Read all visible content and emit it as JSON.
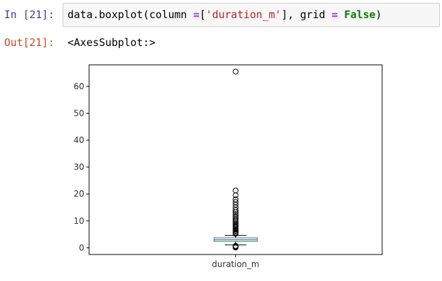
{
  "cell": {
    "in_prompt": "In [21]:",
    "out_prompt": "Out[21]:",
    "code": {
      "t1": "data.boxplot(column ",
      "t2": "=",
      "t3": "[",
      "t4": "'duration_m'",
      "t5": "], grid ",
      "t6": "=",
      "t7": " ",
      "t8": "False",
      "t9": ")"
    },
    "output_text": "<AxesSubplot:>"
  },
  "colors": {
    "box": "#1f77b4",
    "median": "#2ca02c",
    "whisker": "#000000",
    "axis": "#000000"
  },
  "chart_data": {
    "type": "boxplot",
    "categories": [
      "duration_m"
    ],
    "ylim": [
      -2.5,
      68
    ],
    "yticks": [
      0,
      10,
      20,
      30,
      40,
      50,
      60
    ],
    "grid": false,
    "series": [
      {
        "whisker_low": 1.1,
        "q1": 2.4,
        "median": 3.0,
        "q3": 3.7,
        "whisker_high": 4.6,
        "outliers_high": [
          5.2,
          5.6,
          6.0,
          6.4,
          6.8,
          7.2,
          7.6,
          8.0,
          8.5,
          9.0,
          9.5,
          10.0,
          10.5,
          11.2,
          11.8,
          12.5,
          13.2,
          14.0,
          15.0,
          16.0,
          17.0,
          18.0,
          19.5,
          21.3,
          65.5
        ],
        "outliers_low": [
          0.1,
          0.3,
          0.5,
          0.7
        ]
      }
    ]
  }
}
